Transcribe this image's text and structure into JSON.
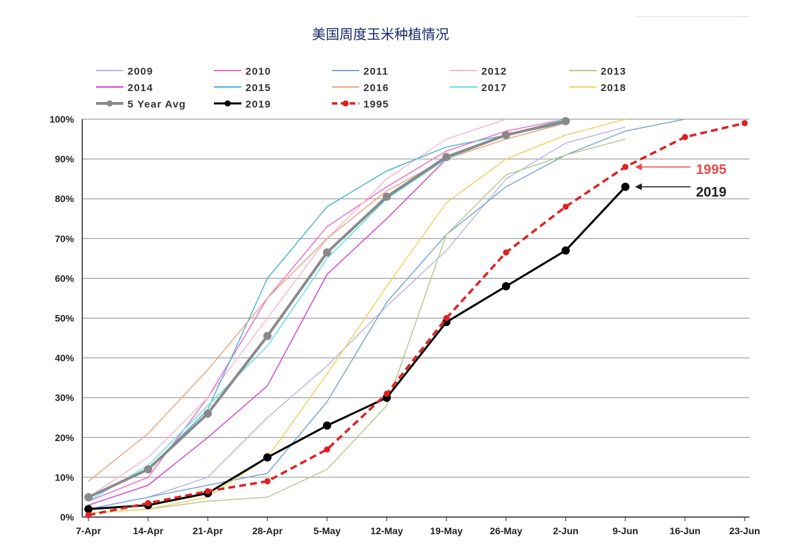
{
  "chart_data": {
    "type": "line",
    "title": "美国周度玉米种植情况",
    "xlabel": "",
    "ylabel": "",
    "ylim": [
      0,
      100
    ],
    "categories": [
      "7-Apr",
      "14-Apr",
      "21-Apr",
      "28-Apr",
      "5-May",
      "12-May",
      "19-May",
      "26-May",
      "2-Jun",
      "9-Jun",
      "16-Jun",
      "23-Jun"
    ],
    "y_ticks": [
      "0%",
      "10%",
      "20%",
      "30%",
      "40%",
      "50%",
      "60%",
      "70%",
      "80%",
      "90%",
      "100%"
    ],
    "series": [
      {
        "name": "2009",
        "color": "#b9b6e6",
        "width": 1.5,
        "values": [
          2,
          5,
          10,
          25,
          38,
          53,
          67,
          85,
          94,
          98,
          null,
          null
        ]
      },
      {
        "name": "2010",
        "color": "#f06ec4",
        "width": 1.5,
        "values": [
          4,
          10,
          30,
          55,
          73,
          83,
          92,
          97,
          100,
          null,
          null,
          null
        ]
      },
      {
        "name": "2011",
        "color": "#7aa6d4",
        "width": 1.5,
        "values": [
          2,
          5,
          8,
          11,
          29,
          54,
          71,
          83,
          91,
          97,
          100,
          null
        ]
      },
      {
        "name": "2012",
        "color": "#f6b7d4",
        "width": 1.5,
        "values": [
          5,
          15,
          30,
          50,
          70,
          85,
          95,
          100,
          null,
          null,
          null,
          null
        ]
      },
      {
        "name": "2013",
        "color": "#b6c98a",
        "width": 1.5,
        "values": [
          1,
          2,
          4,
          5,
          12,
          28,
          71,
          86,
          91,
          95,
          null,
          null
        ]
      },
      {
        "name": "2014",
        "color": "#d146d6",
        "width": 1.5,
        "values": [
          3,
          8,
          20,
          33,
          61,
          75,
          90,
          96,
          99,
          null,
          null,
          null
        ]
      },
      {
        "name": "2015",
        "color": "#4ab4d6",
        "width": 1.5,
        "values": [
          5,
          12,
          27,
          60,
          78,
          87,
          93,
          96,
          99,
          null,
          null,
          null
        ]
      },
      {
        "name": "2016",
        "color": "#e8a57a",
        "width": 1.5,
        "values": [
          9,
          21,
          37,
          55,
          70,
          82,
          90,
          95,
          99,
          null,
          null,
          null
        ]
      },
      {
        "name": "2017",
        "color": "#5fe3e8",
        "width": 1.5,
        "values": [
          4,
          13,
          28,
          43,
          65,
          80,
          90,
          96,
          100,
          null,
          null,
          null
        ]
      },
      {
        "name": "2018",
        "color": "#ecd45a",
        "width": 1.5,
        "values": [
          1,
          2,
          5,
          15,
          36,
          58,
          79,
          90,
          96,
          100,
          null,
          null
        ]
      },
      {
        "name": "5 Year Avg",
        "color": "#8a8a8a",
        "width": 4,
        "marker": true,
        "values": [
          5,
          12,
          26,
          45.5,
          66.5,
          80.5,
          90.5,
          96,
          99.5,
          null,
          null,
          null
        ]
      },
      {
        "name": "2019",
        "color": "#000000",
        "width": 3,
        "marker": true,
        "values": [
          2,
          3,
          6,
          15,
          23,
          30,
          49,
          58,
          67,
          83,
          null,
          null
        ]
      },
      {
        "name": "1995",
        "color": "#e02020",
        "width": 3.5,
        "dashed": true,
        "marker": true,
        "values": [
          0.5,
          3.5,
          6.5,
          9,
          17,
          31,
          50,
          66.5,
          78,
          88,
          95.5,
          99
        ]
      }
    ],
    "annotations": [
      {
        "text": "1995",
        "color": "#e74a4a",
        "series": "1995",
        "at": "9-Jun"
      },
      {
        "text": "2019",
        "color": "#222222",
        "series": "2019",
        "at": "9-Jun"
      }
    ],
    "legend_position": "top"
  }
}
